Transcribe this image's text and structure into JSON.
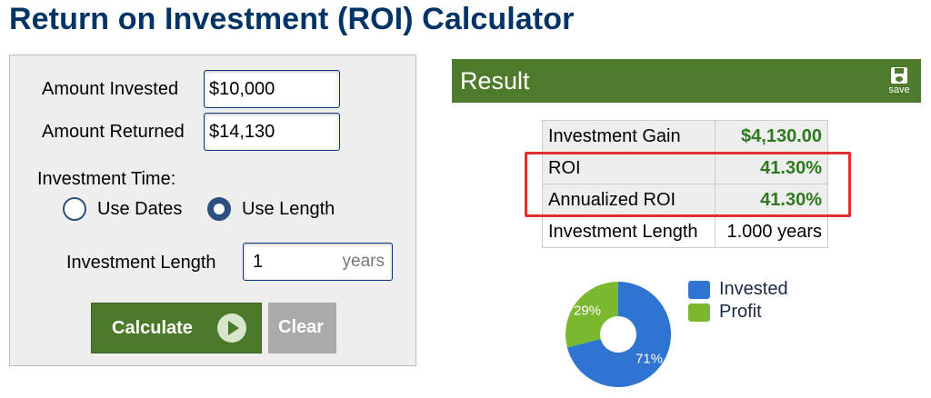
{
  "page_title": "Return on Investment (ROI) Calculator",
  "inputs": {
    "amount_invested_label": "Amount Invested",
    "amount_invested_value": "$10,000",
    "amount_returned_label": "Amount Returned",
    "amount_returned_value": "$14,130",
    "investment_time_label": "Investment Time:",
    "use_dates_label": "Use Dates",
    "use_length_label": "Use Length",
    "selected_option": "Use Length",
    "investment_length_label": "Investment Length",
    "investment_length_value": "1",
    "investment_length_unit": "years"
  },
  "buttons": {
    "calculate": "Calculate",
    "clear": "Clear"
  },
  "result": {
    "title": "Result",
    "save_label": "save",
    "rows": [
      {
        "label": "Investment Gain",
        "value": "$4,130.00"
      },
      {
        "label": "ROI",
        "value": "41.30%"
      },
      {
        "label": "Annualized ROI",
        "value": "41.30%"
      },
      {
        "label": "Investment Length",
        "value": "1.000 years"
      }
    ]
  },
  "chart_data": {
    "type": "pie",
    "categories": [
      "Invested",
      "Profit"
    ],
    "values": [
      71,
      29
    ],
    "data_labels": [
      "71%",
      "29%"
    ],
    "colors": [
      "#2f74d0",
      "#7ab82f"
    ],
    "legend": "right",
    "donut": true
  },
  "colors": {
    "title": "#003366",
    "calculate_button": "#4c7a2b",
    "result_bar": "#4e7a2c",
    "result_value": "#2f7a1f",
    "highlight_box": "#e23030"
  },
  "icons": {
    "save": "floppy-disk-icon",
    "calculate": "play-circle-icon"
  }
}
